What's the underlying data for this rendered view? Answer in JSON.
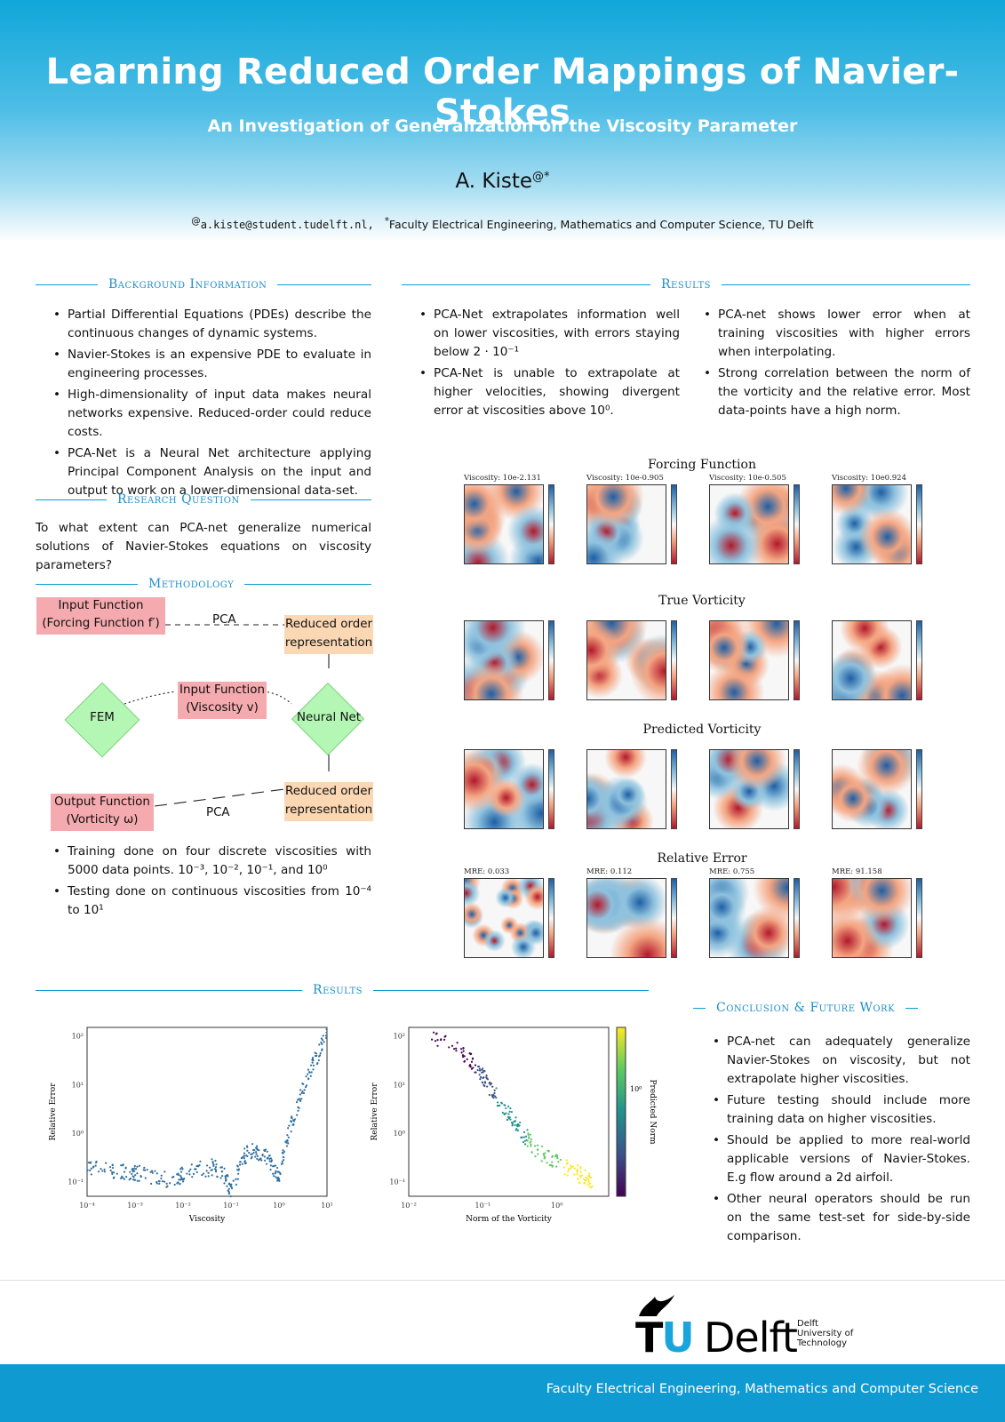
{
  "header": {
    "title": "Learning Reduced Order Mappings of Navier-Stokes",
    "subtitle": "An Investigation of Generalization on the Viscosity Parameter",
    "author": "A. Kiste",
    "author_marks": "@*",
    "email_mark": "@",
    "email": "a.kiste@student.tudelft.nl,",
    "affil_mark": "*",
    "affiliation": "Faculty Electrical Engineering, Mathematics and Computer Science, TU Delft"
  },
  "background": {
    "heading": "Background Information",
    "items": [
      "Partial Differential Equations (PDEs) describe the continuous changes of dynamic systems.",
      "Navier-Stokes is an expensive PDE to evaluate in engineering processes.",
      "High-dimensionality of input data makes neural networks expensive. Reduced-order could reduce costs.",
      "PCA-Net is a Neural Net architecture applying Principal Component Analysis on the input and output to work on a lower-dimensional data-set."
    ]
  },
  "research": {
    "heading": "Research Question",
    "text": "To what extent can PCA-net generalize numerical solutions of Navier-Stokes equations on viscosity parameters?"
  },
  "methodology": {
    "heading": "Methodology",
    "input_forcing": [
      "Input Function",
      "(Forcing Function f′)"
    ],
    "pca_top": "PCA",
    "reduced_top": [
      "Reduced order",
      "representation"
    ],
    "fem": "FEM",
    "input_viscosity": [
      "Input Function",
      "(Viscosity v)"
    ],
    "neural_net": "Neural Net",
    "reduced_bottom": [
      "Reduced order",
      "representation"
    ],
    "output": [
      "Output Function",
      "(Vorticity ω)"
    ],
    "pca_bottom": "PCA",
    "items": [
      "Training done on four discrete viscosities with 5000 data points. 10⁻³, 10⁻², 10⁻¹, and 10⁰",
      "Testing done on continuous viscosities from 10⁻⁴ to 10¹"
    ]
  },
  "results_top": {
    "heading": "Results",
    "col1": [
      "PCA-Net extrapolates information well on lower viscosities, with errors staying below 2 · 10⁻¹",
      "PCA-Net is unable to extrapolate at higher velocities, showing divergent error at viscosities above 10⁰."
    ],
    "col2": [
      "PCA-net shows lower error when at training viscosities with higher errors when interpolating.",
      "Strong correlation between the norm of the vorticity and the relative error. Most data-points have a high norm."
    ]
  },
  "figure_grid": {
    "rows": [
      {
        "title": "Forcing Function",
        "labels": [
          "Viscosity: 10e-2.131",
          "Viscosity: 10e-0.905",
          "Viscosity: 10e-0.505",
          "Viscosity: 10e0.924"
        ]
      },
      {
        "title": "True Vorticity",
        "labels": [
          "",
          "",
          "",
          ""
        ]
      },
      {
        "title": "Predicted Vorticity",
        "labels": [
          "",
          "",
          "",
          ""
        ]
      },
      {
        "title": "Relative Error",
        "labels": [
          "MRE: 0.033",
          "MRE: 0.112",
          "MRE: 0.755",
          "MRE: 91.158"
        ]
      }
    ],
    "colormap": [
      "#1d5fa5",
      "#8fc2de",
      "#f7f7f7",
      "#f4a582",
      "#b2182b"
    ]
  },
  "results_bottom": {
    "heading": "Results"
  },
  "chart_data": [
    {
      "type": "scatter",
      "xlabel": "Viscosity",
      "ylabel": "Relative Error",
      "xscale": "log",
      "yscale": "log",
      "xticks": [
        "10⁻⁴",
        "10⁻³",
        "10⁻²",
        "10⁻¹",
        "10⁰",
        "10¹"
      ],
      "yticks": [
        "10⁻¹",
        "10⁰",
        "10¹",
        "10²"
      ],
      "xlim": [
        0.0001,
        10
      ],
      "ylim": [
        0.05,
        150
      ],
      "color": "#2f6f9f",
      "points": [
        [
          0.0001,
          0.2
        ],
        [
          0.0002,
          0.18
        ],
        [
          0.0004,
          0.17
        ],
        [
          0.0008,
          0.16
        ],
        [
          0.001,
          0.15
        ],
        [
          0.002,
          0.13
        ],
        [
          0.004,
          0.11
        ],
        [
          0.008,
          0.12
        ],
        [
          0.01,
          0.14
        ],
        [
          0.02,
          0.17
        ],
        [
          0.04,
          0.2
        ],
        [
          0.06,
          0.18
        ],
        [
          0.08,
          0.12
        ],
        [
          0.1,
          0.06
        ],
        [
          0.15,
          0.2
        ],
        [
          0.2,
          0.35
        ],
        [
          0.3,
          0.45
        ],
        [
          0.4,
          0.4
        ],
        [
          0.6,
          0.28
        ],
        [
          0.8,
          0.18
        ],
        [
          1.0,
          0.12
        ],
        [
          1.3,
          0.5
        ],
        [
          1.8,
          1.5
        ],
        [
          2.5,
          4
        ],
        [
          3.5,
          10
        ],
        [
          5,
          25
        ],
        [
          7,
          50
        ],
        [
          10,
          100
        ]
      ],
      "grid": false
    },
    {
      "type": "scatter",
      "xlabel": "Norm of the Vorticity",
      "ylabel": "Relative Error",
      "colorbar_label": "Predicted Norm",
      "xscale": "log",
      "yscale": "log",
      "xticks": [
        "10⁻²",
        "10⁻¹",
        "10⁰"
      ],
      "yticks": [
        "10⁻¹",
        "10⁰",
        "10¹",
        "10²"
      ],
      "colorbar_ticks": [
        "10⁰"
      ],
      "colormap": [
        "#440154",
        "#3b528b",
        "#21918c",
        "#5ec962",
        "#fde725"
      ],
      "points": [
        [
          0.02,
          100,
          0.05
        ],
        [
          0.04,
          60,
          0.1
        ],
        [
          0.06,
          40,
          0.15
        ],
        [
          0.08,
          25,
          0.2
        ],
        [
          0.1,
          15,
          0.3
        ],
        [
          0.12,
          9,
          0.35
        ],
        [
          0.15,
          6,
          0.4
        ],
        [
          0.2,
          3,
          0.45
        ],
        [
          0.25,
          2,
          0.5
        ],
        [
          0.3,
          1.2,
          0.55
        ],
        [
          0.4,
          0.8,
          0.6
        ],
        [
          0.5,
          0.5,
          0.65
        ],
        [
          0.7,
          0.35,
          0.7
        ],
        [
          1.0,
          0.25,
          0.75
        ],
        [
          1.5,
          0.18,
          0.85
        ],
        [
          2.0,
          0.14,
          0.9
        ],
        [
          2.5,
          0.12,
          0.95
        ],
        [
          3.0,
          0.11,
          1.0
        ]
      ],
      "grid": false
    }
  ],
  "conclusion": {
    "heading": "Conclusion & Future Work",
    "items": [
      "PCA-net can adequately generalize Navier-Stokes on viscosity, but not extrapolate higher viscosities.",
      "Future testing should include more training data on higher viscosities.",
      "Should be applied to more real-world applicable versions of Navier-Stokes. E.g flow around a 2d airfoil.",
      "Other neural operators should be run on the same test-set for side-by-side comparison."
    ]
  },
  "footer": {
    "logo_tu_t": "T",
    "logo_tu_u": "U",
    "logo_delft": "Delft",
    "logo_small": [
      "Delft",
      "University of",
      "Technology"
    ],
    "faculty": "Faculty Electrical Engineering, Mathematics and Computer Science"
  }
}
